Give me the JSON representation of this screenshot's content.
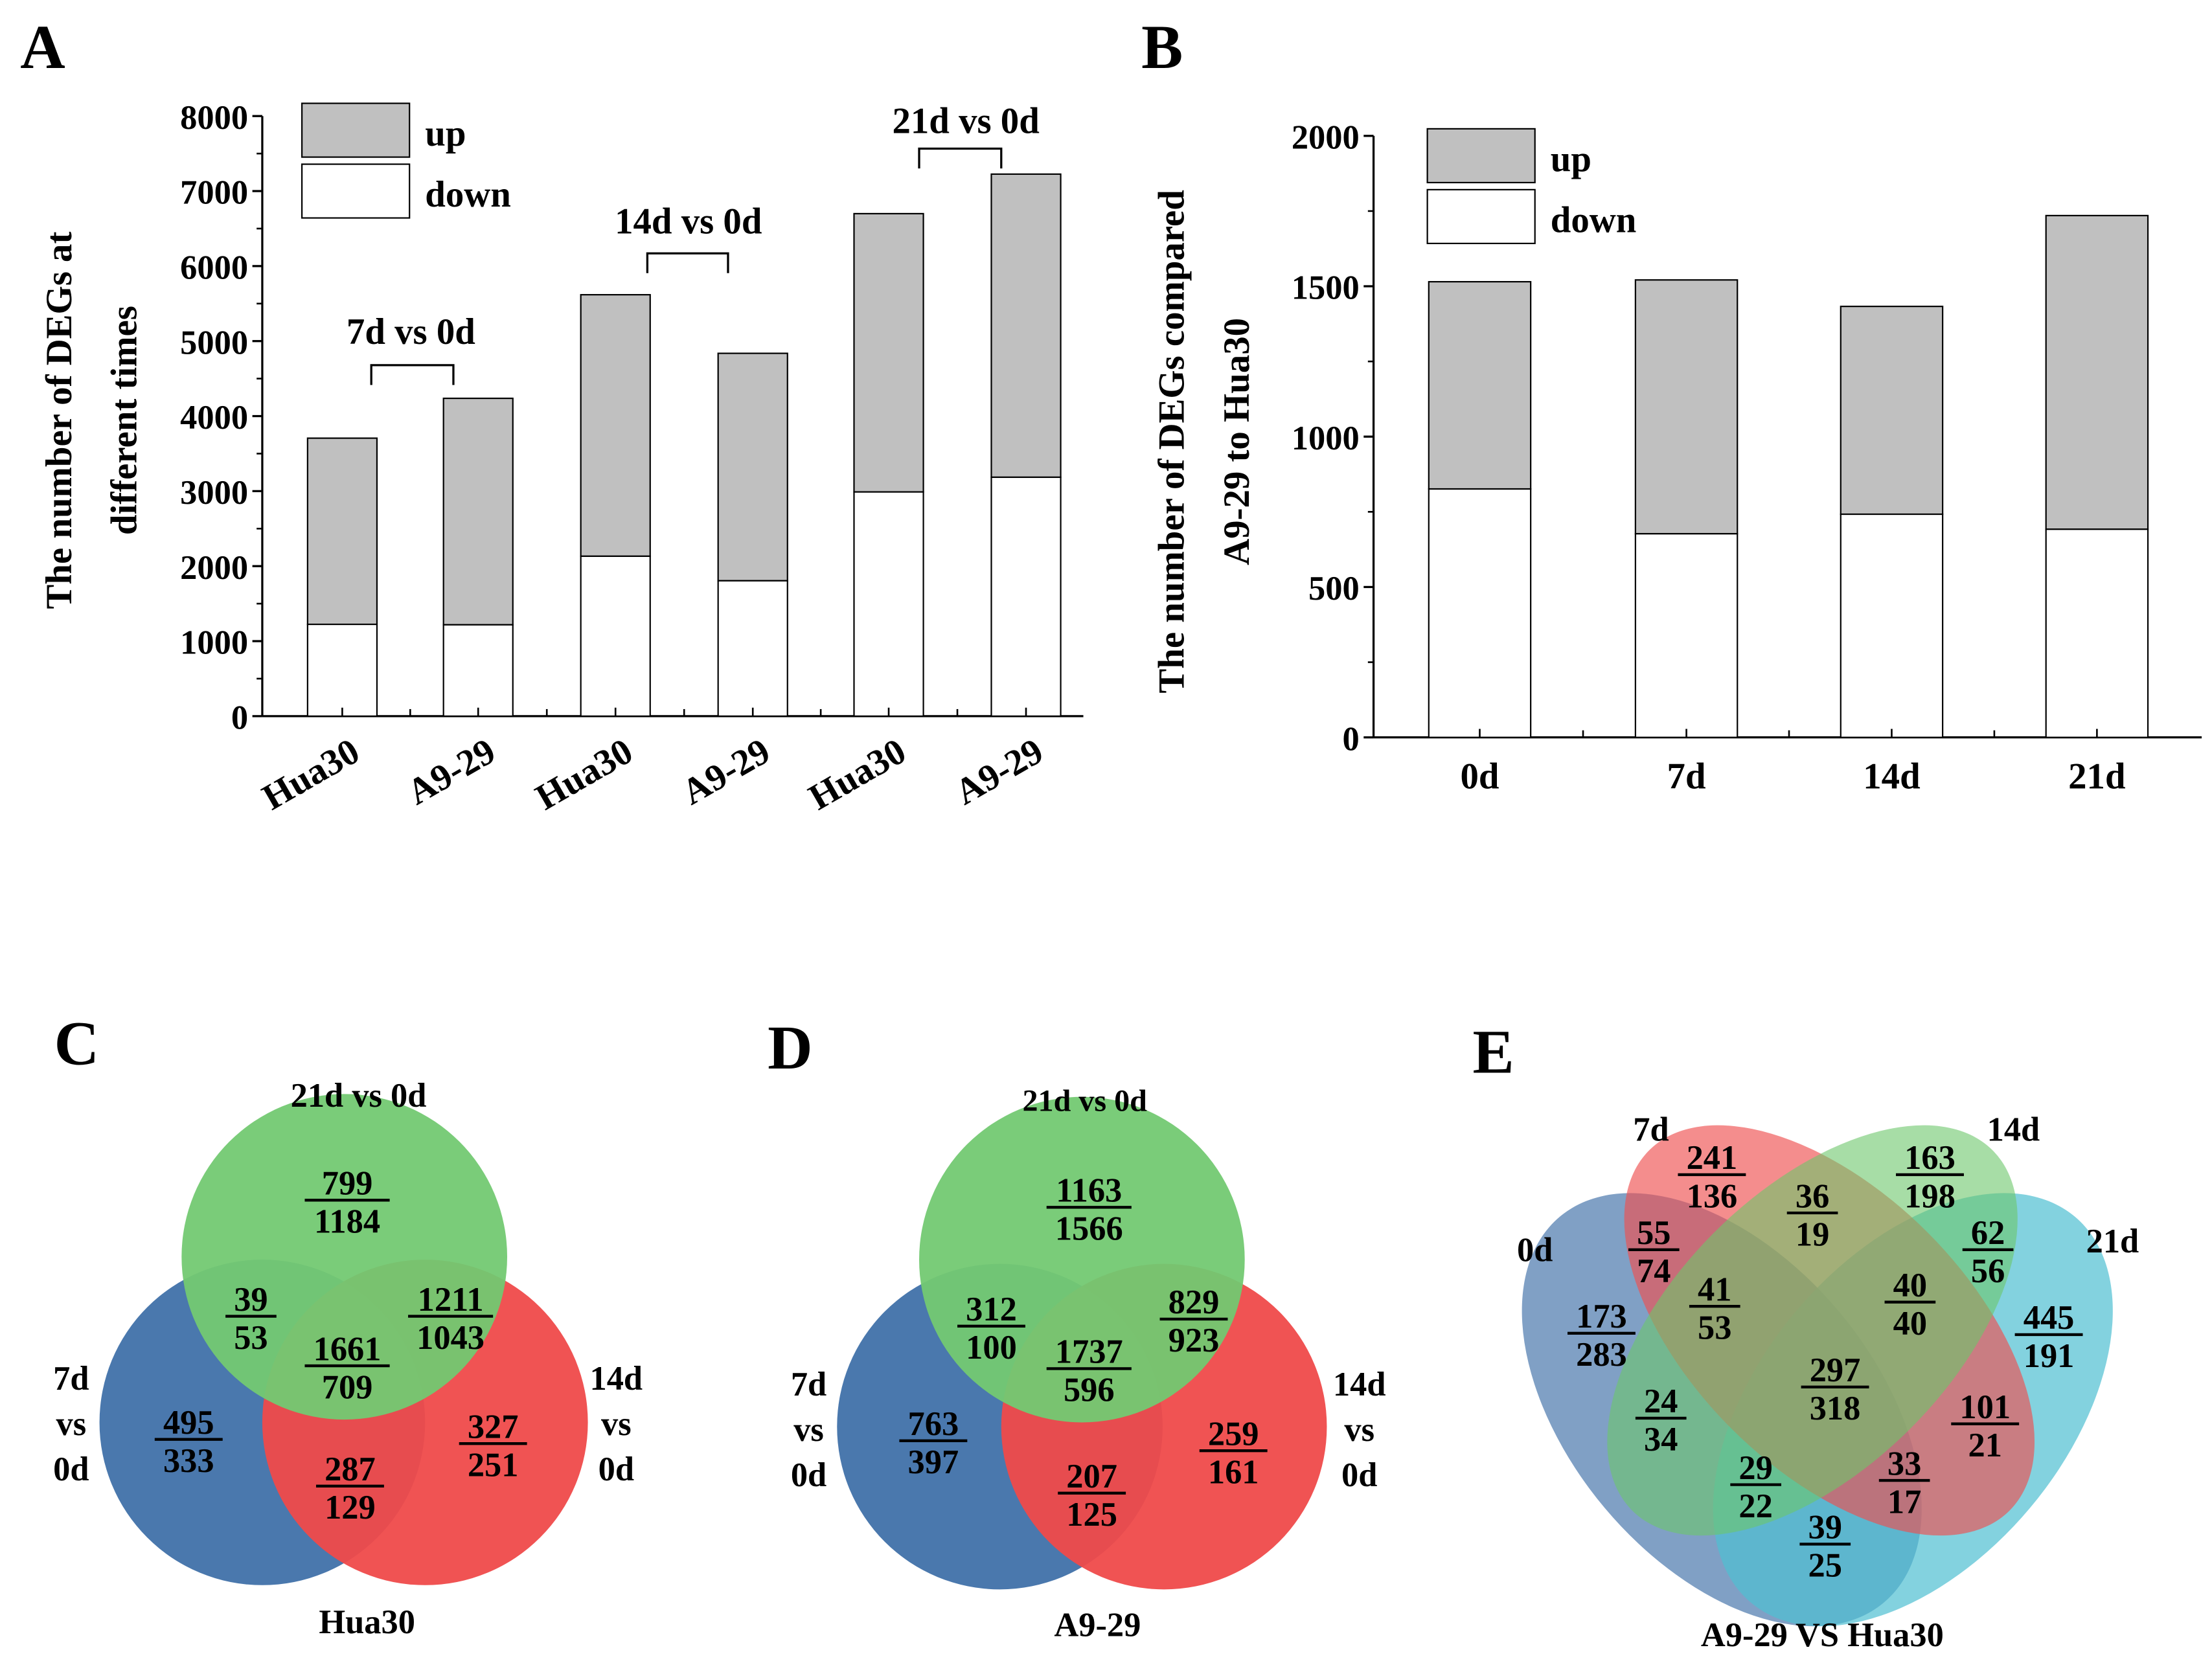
{
  "panels": {
    "a": "A",
    "b": "B",
    "c": "C",
    "d": "D",
    "e": "E"
  },
  "chart_data": [
    {
      "id": "A",
      "type": "bar",
      "stacked": true,
      "ylabel_lines": [
        "The number of DEGs at",
        "different times"
      ],
      "xlabel": "",
      "categories": [
        "Hua30",
        "A9-29",
        "Hua30",
        "A9-29",
        "Hua30",
        "A9-29"
      ],
      "groups": [
        "7d vs 0d",
        "14d vs 0d",
        "21d vs 0d"
      ],
      "series": [
        {
          "name": "down",
          "values": [
            1224,
            1218,
            2132,
            1805,
            2989,
            3185
          ],
          "color": "#ffffff"
        },
        {
          "name": "up",
          "values": [
            2482,
            3019,
            3486,
            3032,
            3710,
            4041
          ],
          "color": "#c0c0c0"
        }
      ],
      "legend": [
        "up",
        "down"
      ],
      "legend_position": "top-left",
      "ylim": [
        0,
        8000
      ],
      "yticks": [
        "0",
        "1000",
        "2000",
        "3000",
        "4000",
        "5000",
        "6000",
        "7000",
        "8000"
      ]
    },
    {
      "id": "B",
      "type": "bar",
      "stacked": true,
      "ylabel_lines": [
        "The number of DEGs compared",
        "A9-29 to Hua30"
      ],
      "xlabel": "",
      "categories": [
        "0d",
        "7d",
        "14d",
        "21d"
      ],
      "series": [
        {
          "name": "down",
          "values": [
            826,
            677,
            742,
            692
          ],
          "color": "#ffffff"
        },
        {
          "name": "up",
          "values": [
            689,
            844,
            691,
            1043
          ],
          "color": "#c0c0c0"
        }
      ],
      "legend": [
        "up",
        "down"
      ],
      "legend_position": "top-left",
      "ylim": [
        0,
        2000
      ],
      "yticks": [
        "0",
        "500",
        "1000",
        "1500",
        "2000"
      ]
    },
    {
      "id": "C",
      "type": "venn",
      "title": "Hua30",
      "set_labels": {
        "top": "21d vs 0d",
        "left": [
          "7d",
          "vs",
          "0d"
        ],
        "right": [
          "14d",
          "vs",
          "0d"
        ]
      },
      "regions": [
        {
          "up": "799",
          "down": "1184"
        },
        {
          "up": "39",
          "down": "53"
        },
        {
          "up": "1211",
          "down": "1043"
        },
        {
          "up": "1661",
          "down": "709"
        },
        {
          "up": "495",
          "down": "333"
        },
        {
          "up": "327",
          "down": "251"
        },
        {
          "up": "287",
          "down": "129"
        }
      ]
    },
    {
      "id": "D",
      "type": "venn",
      "title": "A9-29",
      "set_labels": {
        "top": "21d vs 0d",
        "left": [
          "7d",
          "vs",
          "0d"
        ],
        "right": [
          "14d",
          "vs",
          "0d"
        ]
      },
      "regions": [
        {
          "up": "1163",
          "down": "1566"
        },
        {
          "up": "312",
          "down": "100"
        },
        {
          "up": "829",
          "down": "923"
        },
        {
          "up": "1737",
          "down": "596"
        },
        {
          "up": "763",
          "down": "397"
        },
        {
          "up": "259",
          "down": "161"
        },
        {
          "up": "207",
          "down": "125"
        }
      ]
    },
    {
      "id": "E",
      "type": "venn",
      "title": "A9-29 VS Hua30",
      "set_labels": {
        "s7": "7d",
        "s14": "14d",
        "s0": "0d",
        "s21": "21d"
      },
      "regions": [
        {
          "up": "241",
          "down": "136"
        },
        {
          "up": "163",
          "down": "198"
        },
        {
          "up": "36",
          "down": "19"
        },
        {
          "up": "55",
          "down": "74"
        },
        {
          "up": "62",
          "down": "56"
        },
        {
          "up": "41",
          "down": "53"
        },
        {
          "up": "40",
          "down": "40"
        },
        {
          "up": "173",
          "down": "283"
        },
        {
          "up": "445",
          "down": "191"
        },
        {
          "up": "297",
          "down": "318"
        },
        {
          "up": "24",
          "down": "34"
        },
        {
          "up": "101",
          "down": "21"
        },
        {
          "up": "29",
          "down": "22"
        },
        {
          "up": "33",
          "down": "17"
        },
        {
          "up": "39",
          "down": "25"
        }
      ]
    }
  ]
}
